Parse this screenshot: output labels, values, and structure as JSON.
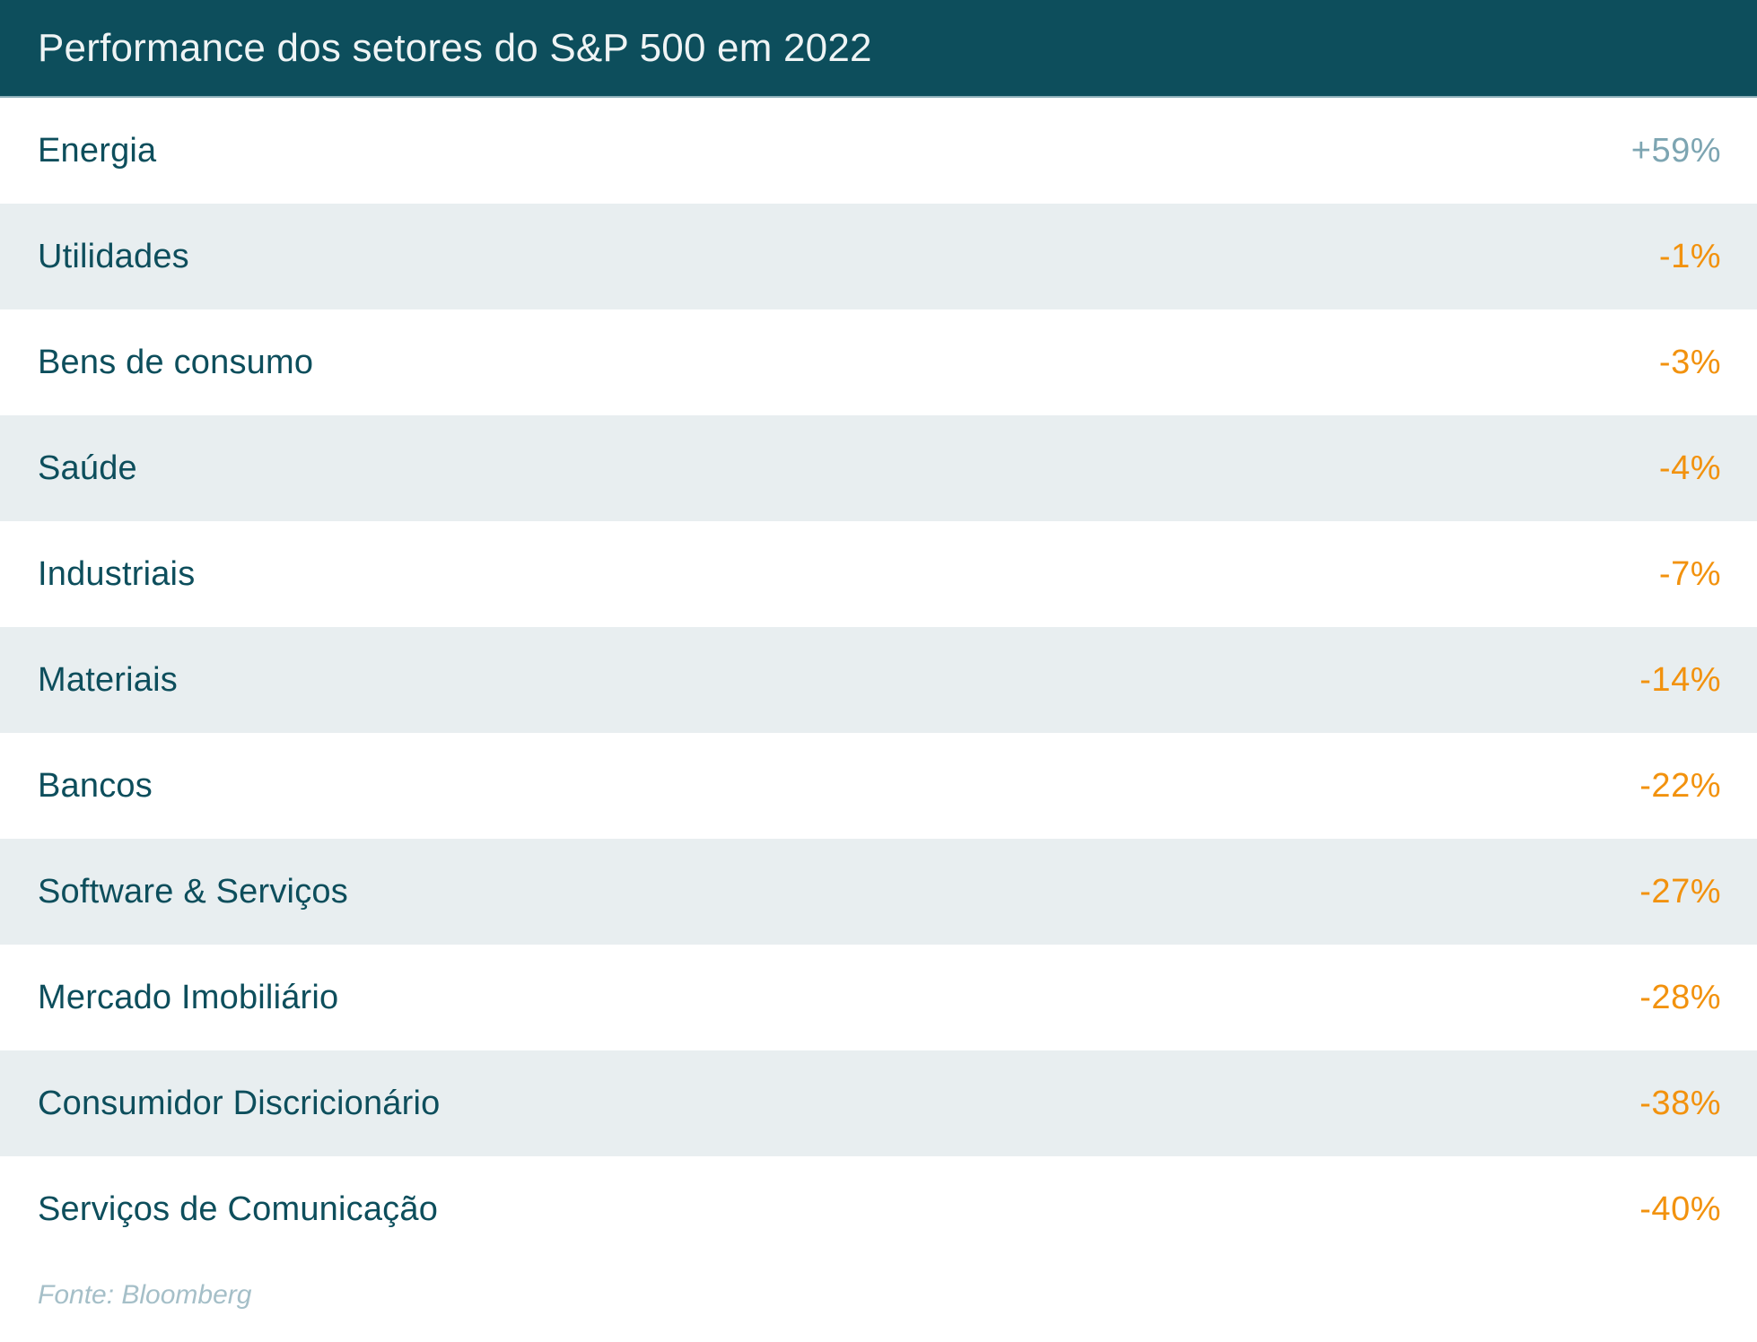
{
  "title": "Performance dos setores do S&P 500 em 2022",
  "source": "Fonte: Bloomberg",
  "rows": [
    {
      "label": "Energia",
      "value": "+59%"
    },
    {
      "label": "Utilidades",
      "value": "-1%"
    },
    {
      "label": "Bens de consumo",
      "value": "-3%"
    },
    {
      "label": "Saúde",
      "value": "-4%"
    },
    {
      "label": "Industriais",
      "value": "-7%"
    },
    {
      "label": "Materiais",
      "value": "-14%"
    },
    {
      "label": "Bancos",
      "value": "-22%"
    },
    {
      "label": "Software & Serviços",
      "value": "-27%"
    },
    {
      "label": "Mercado Imobiliário",
      "value": "-28%"
    },
    {
      "label": "Consumidor Discricionário",
      "value": "-38%"
    },
    {
      "label": "Serviços de Comunicação",
      "value": "-40%"
    }
  ],
  "colors": {
    "header_bg": "#0d4e5c",
    "header_text": "#eff4f5",
    "header_divider": "#8fb0ba",
    "label_text": "#0d4e5c",
    "row_bg": "#ffffff",
    "row_alt_bg": "#e8eef0",
    "positive_value": "#7da5b2",
    "negative_value": "#f2920e",
    "source_text": "#a5bfc8"
  },
  "chart_data": {
    "type": "table",
    "title": "Performance dos setores do S&P 500 em 2022",
    "categories": [
      "Energia",
      "Utilidades",
      "Bens de consumo",
      "Saúde",
      "Industriais",
      "Materiais",
      "Bancos",
      "Software & Serviços",
      "Mercado Imobiliário",
      "Consumidor Discricionário",
      "Serviços de Comunicação"
    ],
    "values": [
      59,
      -1,
      -3,
      -4,
      -7,
      -14,
      -22,
      -27,
      -28,
      -38,
      -40
    ],
    "value_labels": [
      "+59%",
      "-1%",
      "-3%",
      "-4%",
      "-7%",
      "-14%",
      "-22%",
      "-27%",
      "-28%",
      "-38%",
      "-40%"
    ],
    "unit": "%",
    "source": "Fonte: Bloomberg",
    "layout": "zebra-striped list, label left, value right, negative values orange, positive values muted blue"
  }
}
